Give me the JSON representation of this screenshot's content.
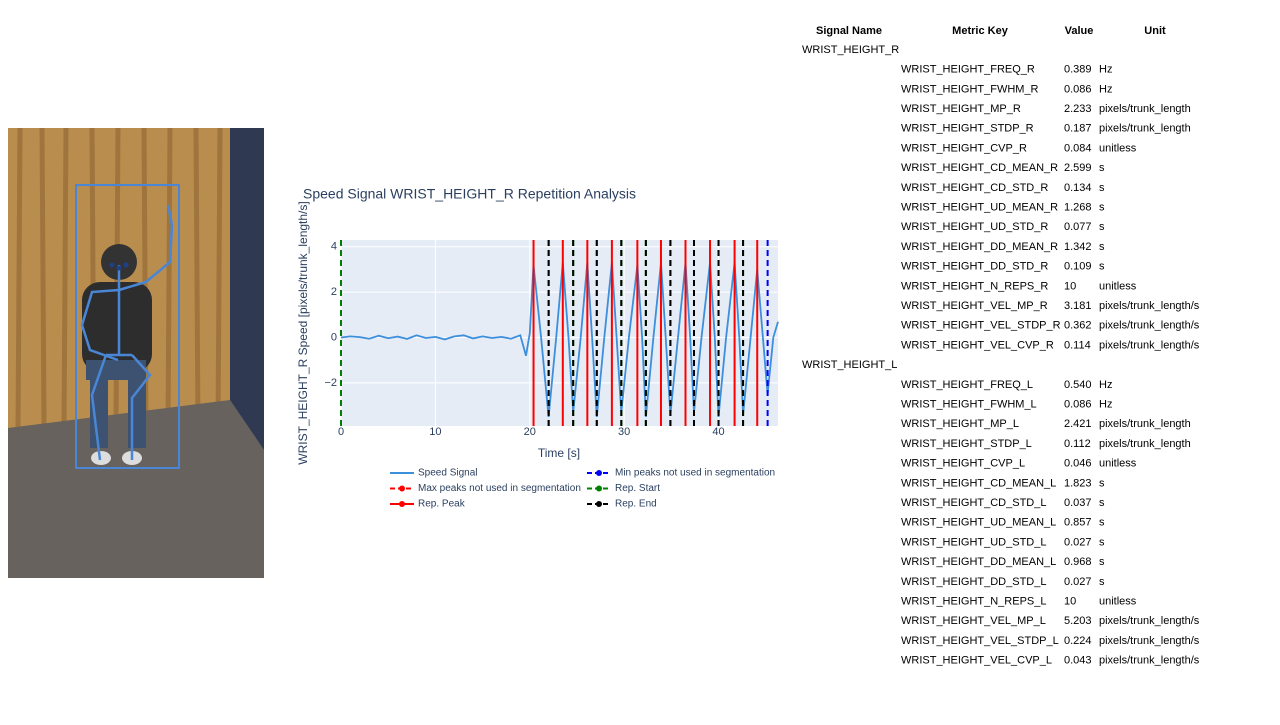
{
  "chart_data": {
    "type": "line",
    "title": "Speed Signal WRIST_HEIGHT_R Repetition Analysis",
    "x_label": "Time [s]",
    "y_label": "WRIST_HEIGHT_R Speed [pixels/trunk_length/s]",
    "xlim": [
      0,
      46.3
    ],
    "ylim": [
      -3.9,
      4.3
    ],
    "xticks": [
      0,
      10,
      20,
      30,
      40
    ],
    "yticks": [
      {
        "value": -2,
        "label": "−2"
      },
      0,
      2,
      4
    ],
    "grid": true,
    "series": [
      {
        "name": "Speed Signal",
        "color": "#3d8fdc",
        "x": [
          0,
          1,
          2,
          3,
          4,
          5,
          6,
          7,
          8,
          9,
          10,
          11,
          12,
          13,
          14,
          15,
          16,
          17,
          18,
          19,
          19.6,
          20,
          20.4,
          21.2,
          22,
          22.8,
          23.5,
          24.1,
          24.6,
          25.4,
          26.1,
          26.6,
          27.1,
          27.9,
          28.7,
          29.2,
          29.7,
          30.5,
          31.4,
          31.9,
          32.3,
          33.1,
          33.9,
          34.4,
          34.9,
          35.7,
          36.5,
          37,
          37.4,
          38.2,
          39.1,
          39.6,
          40,
          40.8,
          41.7,
          42.2,
          42.6,
          43.4,
          44.1,
          44.7,
          45.2,
          45.8,
          46.3
        ],
        "values": [
          0,
          0.05,
          0.02,
          -0.05,
          0.08,
          -0.03,
          0.04,
          -0.06,
          0.1,
          -0.02,
          0.03,
          -0.08,
          0.05,
          0.1,
          -0.04,
          0.05,
          -0.02,
          0.03,
          -0.05,
          0.1,
          -0.8,
          0.2,
          3.2,
          0,
          -3.5,
          0,
          3.3,
          0,
          -3.3,
          0,
          3.3,
          0,
          -3.5,
          0,
          3.3,
          0,
          -3.3,
          0,
          3.2,
          0,
          -3.5,
          0,
          3.3,
          0,
          -3.4,
          0,
          3.3,
          0,
          -3.3,
          0,
          3.3,
          0,
          -3.5,
          0,
          3.3,
          0,
          -3.4,
          0,
          3.0,
          0,
          -2.5,
          0,
          0.7
        ]
      },
      {
        "name": "Max peaks not used in segmentation",
        "color": "#ff0000",
        "dash": true,
        "x": []
      },
      {
        "name": "Rep. Peak",
        "color": "#ff0000",
        "dash": false,
        "x": [
          20.4,
          23.5,
          26.1,
          28.7,
          31.4,
          33.9,
          36.5,
          39.1,
          41.7,
          44.1
        ]
      },
      {
        "name": "Min peaks not used in segmentation",
        "color": "#0000ff",
        "dash": true,
        "x": [
          45.2
        ]
      },
      {
        "name": "Rep. Start",
        "color": "#008000",
        "dash": true,
        "x": [
          0,
          22,
          24.6,
          27.1,
          29.7,
          32.3,
          34.9,
          37.4,
          40,
          42.6
        ]
      },
      {
        "name": "Rep. End",
        "color": "#000000",
        "dash": true,
        "x": [
          22,
          24.6,
          27.1,
          29.7,
          32.3,
          34.9,
          37.4,
          40,
          42.6
        ]
      }
    ]
  },
  "table": {
    "header": [
      "Signal Name",
      "Metric Key",
      "Value",
      "Unit"
    ],
    "groups": [
      {
        "name": "WRIST_HEIGHT_R",
        "rows": [
          [
            "WRIST_HEIGHT_FREQ_R",
            "0.389",
            "Hz"
          ],
          [
            "WRIST_HEIGHT_FWHM_R",
            "0.086",
            "Hz"
          ],
          [
            "WRIST_HEIGHT_MP_R",
            "2.233",
            "pixels/trunk_length"
          ],
          [
            "WRIST_HEIGHT_STDP_R",
            "0.187",
            "pixels/trunk_length"
          ],
          [
            "WRIST_HEIGHT_CVP_R",
            "0.084",
            "unitless"
          ],
          [
            "WRIST_HEIGHT_CD_MEAN_R",
            "2.599",
            "s"
          ],
          [
            "WRIST_HEIGHT_CD_STD_R",
            "0.134",
            "s"
          ],
          [
            "WRIST_HEIGHT_UD_MEAN_R",
            "1.268",
            "s"
          ],
          [
            "WRIST_HEIGHT_UD_STD_R",
            "0.077",
            "s"
          ],
          [
            "WRIST_HEIGHT_DD_MEAN_R",
            "1.342",
            "s"
          ],
          [
            "WRIST_HEIGHT_DD_STD_R",
            "0.109",
            "s"
          ],
          [
            "WRIST_HEIGHT_N_REPS_R",
            "10",
            "unitless"
          ],
          [
            "WRIST_HEIGHT_VEL_MP_R",
            "3.181",
            "pixels/trunk_length/s"
          ],
          [
            "WRIST_HEIGHT_VEL_STDP_R",
            "0.362",
            "pixels/trunk_length/s"
          ],
          [
            "WRIST_HEIGHT_VEL_CVP_R",
            "0.114",
            "pixels/trunk_length/s"
          ]
        ]
      },
      {
        "name": "WRIST_HEIGHT_L",
        "rows": [
          [
            "WRIST_HEIGHT_FREQ_L",
            "0.540",
            "Hz"
          ],
          [
            "WRIST_HEIGHT_FWHM_L",
            "0.086",
            "Hz"
          ],
          [
            "WRIST_HEIGHT_MP_L",
            "2.421",
            "pixels/trunk_length"
          ],
          [
            "WRIST_HEIGHT_STDP_L",
            "0.112",
            "pixels/trunk_length"
          ],
          [
            "WRIST_HEIGHT_CVP_L",
            "0.046",
            "unitless"
          ],
          [
            "WRIST_HEIGHT_CD_MEAN_L",
            "1.823",
            "s"
          ],
          [
            "WRIST_HEIGHT_CD_STD_L",
            "0.037",
            "s"
          ],
          [
            "WRIST_HEIGHT_UD_MEAN_L",
            "0.857",
            "s"
          ],
          [
            "WRIST_HEIGHT_UD_STD_L",
            "0.027",
            "s"
          ],
          [
            "WRIST_HEIGHT_DD_MEAN_L",
            "0.968",
            "s"
          ],
          [
            "WRIST_HEIGHT_DD_STD_L",
            "0.027",
            "s"
          ],
          [
            "WRIST_HEIGHT_N_REPS_L",
            "10",
            "unitless"
          ],
          [
            "WRIST_HEIGHT_VEL_MP_L",
            "5.203",
            "pixels/trunk_length/s"
          ],
          [
            "WRIST_HEIGHT_VEL_STDP_L",
            "0.224",
            "pixels/trunk_length/s"
          ],
          [
            "WRIST_HEIGHT_VEL_CVP_L",
            "0.043",
            "pixels/trunk_length/s"
          ]
        ]
      }
    ]
  }
}
